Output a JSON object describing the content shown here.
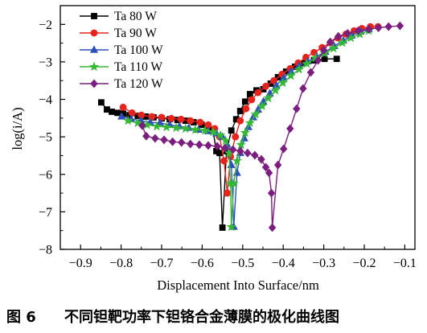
{
  "figure": {
    "caption_label": "图 6",
    "caption_text": "不同钽靶功率下钽铬合金薄膜的极化曲线图"
  },
  "chart_data": {
    "type": "line",
    "xlabel": "Displacement Into Surface/nm",
    "ylabel": "log(i/A)",
    "xlim": [
      -0.95,
      -0.075
    ],
    "ylim": [
      -8,
      -1.5
    ],
    "x_tick_values": [
      -0.9,
      -0.8,
      -0.7,
      -0.6,
      -0.5,
      -0.4,
      -0.3,
      -0.2,
      -0.1
    ],
    "x_tick_labels": [
      "−0.9",
      "−0.8",
      "−0.7",
      "−0.6",
      "−0.5",
      "−0.4",
      "−0.3",
      "−0.2",
      "−0.1"
    ],
    "y_tick_values": [
      -8,
      -7,
      -6,
      -5,
      -4,
      -3,
      -2
    ],
    "y_tick_labels": [
      "−8",
      "−7",
      "−6",
      "−5",
      "−4",
      "−3",
      "−2"
    ],
    "grid": false,
    "legend_position": "top-left",
    "series": [
      {
        "name": "Ta 80 W",
        "color": "#000000",
        "marker": "square",
        "points": [
          [
            -0.849,
            -4.08
          ],
          [
            -0.835,
            -4.27
          ],
          [
            -0.823,
            -4.33
          ],
          [
            -0.809,
            -4.36
          ],
          [
            -0.795,
            -4.38
          ],
          [
            -0.779,
            -4.42
          ],
          [
            -0.759,
            -4.44
          ],
          [
            -0.739,
            -4.46
          ],
          [
            -0.72,
            -4.48
          ],
          [
            -0.7,
            -4.51
          ],
          [
            -0.68,
            -4.53
          ],
          [
            -0.661,
            -4.55
          ],
          [
            -0.641,
            -4.57
          ],
          [
            -0.621,
            -4.61
          ],
          [
            -0.601,
            -4.68
          ],
          [
            -0.585,
            -4.74
          ],
          [
            -0.573,
            -4.85
          ],
          [
            -0.565,
            -5.38
          ],
          [
            -0.557,
            -5.43
          ],
          [
            -0.55,
            -7.42
          ],
          [
            -0.54,
            -5.38
          ],
          [
            -0.528,
            -4.83
          ],
          [
            -0.516,
            -4.53
          ],
          [
            -0.506,
            -4.31
          ],
          [
            -0.494,
            -4.06
          ],
          [
            -0.482,
            -3.86
          ],
          [
            -0.466,
            -3.76
          ],
          [
            -0.449,
            -3.73
          ],
          [
            -0.431,
            -3.58
          ],
          [
            -0.413,
            -3.41
          ],
          [
            -0.393,
            -3.26
          ],
          [
            -0.371,
            -3.13
          ],
          [
            -0.348,
            -3.03
          ],
          [
            -0.324,
            -2.96
          ],
          [
            -0.298,
            -2.92
          ],
          [
            -0.268,
            -2.92
          ]
        ]
      },
      {
        "name": "Ta 90 W",
        "color": "#e8231b",
        "marker": "circle",
        "points": [
          [
            -0.795,
            -4.21
          ],
          [
            -0.773,
            -4.36
          ],
          [
            -0.75,
            -4.42
          ],
          [
            -0.724,
            -4.46
          ],
          [
            -0.7,
            -4.48
          ],
          [
            -0.676,
            -4.51
          ],
          [
            -0.652,
            -4.53
          ],
          [
            -0.629,
            -4.57
          ],
          [
            -0.605,
            -4.61
          ],
          [
            -0.585,
            -4.68
          ],
          [
            -0.569,
            -4.78
          ],
          [
            -0.557,
            -5.0
          ],
          [
            -0.546,
            -5.64
          ],
          [
            -0.538,
            -6.5
          ],
          [
            -0.53,
            -5.53
          ],
          [
            -0.518,
            -5.0
          ],
          [
            -0.506,
            -4.57
          ],
          [
            -0.492,
            -4.25
          ],
          [
            -0.478,
            -4.01
          ],
          [
            -0.462,
            -3.82
          ],
          [
            -0.443,
            -3.65
          ],
          [
            -0.423,
            -3.5
          ],
          [
            -0.403,
            -3.33
          ],
          [
            -0.383,
            -3.18
          ],
          [
            -0.363,
            -3.03
          ],
          [
            -0.344,
            -2.88
          ],
          [
            -0.324,
            -2.75
          ],
          [
            -0.304,
            -2.62
          ],
          [
            -0.284,
            -2.49
          ],
          [
            -0.265,
            -2.36
          ],
          [
            -0.245,
            -2.26
          ],
          [
            -0.225,
            -2.17
          ],
          [
            -0.206,
            -2.11
          ],
          [
            -0.185,
            -2.06
          ],
          [
            -0.166,
            -2.06
          ]
        ]
      },
      {
        "name": "Ta 100 W",
        "color": "#2f50b8",
        "marker": "triangle",
        "points": [
          [
            -0.799,
            -4.46
          ],
          [
            -0.775,
            -4.53
          ],
          [
            -0.751,
            -4.57
          ],
          [
            -0.728,
            -4.61
          ],
          [
            -0.704,
            -4.63
          ],
          [
            -0.68,
            -4.68
          ],
          [
            -0.656,
            -4.72
          ],
          [
            -0.633,
            -4.76
          ],
          [
            -0.609,
            -4.81
          ],
          [
            -0.585,
            -4.85
          ],
          [
            -0.565,
            -4.91
          ],
          [
            -0.55,
            -5.0
          ],
          [
            -0.538,
            -5.21
          ],
          [
            -0.528,
            -5.75
          ],
          [
            -0.522,
            -7.4
          ],
          [
            -0.514,
            -5.96
          ],
          [
            -0.506,
            -5.43
          ],
          [
            -0.496,
            -5.04
          ],
          [
            -0.486,
            -4.74
          ],
          [
            -0.474,
            -4.48
          ],
          [
            -0.462,
            -4.27
          ],
          [
            -0.449,
            -4.06
          ],
          [
            -0.433,
            -3.84
          ],
          [
            -0.417,
            -3.63
          ],
          [
            -0.399,
            -3.43
          ],
          [
            -0.381,
            -3.26
          ],
          [
            -0.361,
            -3.11
          ],
          [
            -0.34,
            -2.99
          ],
          [
            -0.318,
            -2.86
          ],
          [
            -0.296,
            -2.73
          ],
          [
            -0.274,
            -2.58
          ],
          [
            -0.252,
            -2.43
          ],
          [
            -0.231,
            -2.3
          ],
          [
            -0.209,
            -2.19
          ],
          [
            -0.189,
            -2.13
          ]
        ]
      },
      {
        "name": "Ta 110 W",
        "color": "#35b835",
        "marker": "star",
        "points": [
          [
            -0.783,
            -4.57
          ],
          [
            -0.759,
            -4.63
          ],
          [
            -0.736,
            -4.68
          ],
          [
            -0.712,
            -4.72
          ],
          [
            -0.688,
            -4.74
          ],
          [
            -0.664,
            -4.76
          ],
          [
            -0.641,
            -4.78
          ],
          [
            -0.617,
            -4.81
          ],
          [
            -0.593,
            -4.83
          ],
          [
            -0.573,
            -4.87
          ],
          [
            -0.555,
            -4.96
          ],
          [
            -0.542,
            -5.1
          ],
          [
            -0.534,
            -5.43
          ],
          [
            -0.53,
            -6.24
          ],
          [
            -0.528,
            -7.4
          ],
          [
            -0.522,
            -6.24
          ],
          [
            -0.514,
            -5.64
          ],
          [
            -0.504,
            -5.21
          ],
          [
            -0.494,
            -4.89
          ],
          [
            -0.482,
            -4.63
          ],
          [
            -0.468,
            -4.4
          ],
          [
            -0.452,
            -4.18
          ],
          [
            -0.437,
            -3.97
          ],
          [
            -0.419,
            -3.76
          ],
          [
            -0.401,
            -3.56
          ],
          [
            -0.381,
            -3.37
          ],
          [
            -0.361,
            -3.2
          ],
          [
            -0.342,
            -3.05
          ],
          [
            -0.32,
            -2.9
          ],
          [
            -0.298,
            -2.77
          ],
          [
            -0.276,
            -2.64
          ],
          [
            -0.254,
            -2.49
          ],
          [
            -0.233,
            -2.36
          ],
          [
            -0.211,
            -2.26
          ],
          [
            -0.189,
            -2.17
          ]
        ]
      },
      {
        "name": "Ta 120 W",
        "color": "#7b1e7e",
        "marker": "diamond",
        "points": [
          [
            -0.748,
            -4.7
          ],
          [
            -0.738,
            -4.98
          ],
          [
            -0.716,
            -5.04
          ],
          [
            -0.694,
            -5.08
          ],
          [
            -0.673,
            -5.13
          ],
          [
            -0.651,
            -5.15
          ],
          [
            -0.629,
            -5.19
          ],
          [
            -0.607,
            -5.21
          ],
          [
            -0.585,
            -5.23
          ],
          [
            -0.563,
            -5.25
          ],
          [
            -0.544,
            -5.3
          ],
          [
            -0.524,
            -5.34
          ],
          [
            -0.506,
            -5.38
          ],
          [
            -0.488,
            -5.43
          ],
          [
            -0.47,
            -5.49
          ],
          [
            -0.454,
            -5.6
          ],
          [
            -0.443,
            -5.81
          ],
          [
            -0.435,
            -5.96
          ],
          [
            -0.429,
            -6.5
          ],
          [
            -0.427,
            -7.42
          ],
          [
            -0.413,
            -5.75
          ],
          [
            -0.399,
            -5.32
          ],
          [
            -0.383,
            -4.78
          ],
          [
            -0.367,
            -4.25
          ],
          [
            -0.351,
            -3.71
          ],
          [
            -0.332,
            -3.28
          ],
          [
            -0.314,
            -2.96
          ],
          [
            -0.3,
            -2.69
          ],
          [
            -0.284,
            -2.47
          ],
          [
            -0.264,
            -2.32
          ],
          [
            -0.241,
            -2.24
          ],
          [
            -0.215,
            -2.17
          ],
          [
            -0.189,
            -2.13
          ],
          [
            -0.165,
            -2.09
          ],
          [
            -0.14,
            -2.06
          ],
          [
            -0.112,
            -2.04
          ]
        ]
      }
    ]
  }
}
